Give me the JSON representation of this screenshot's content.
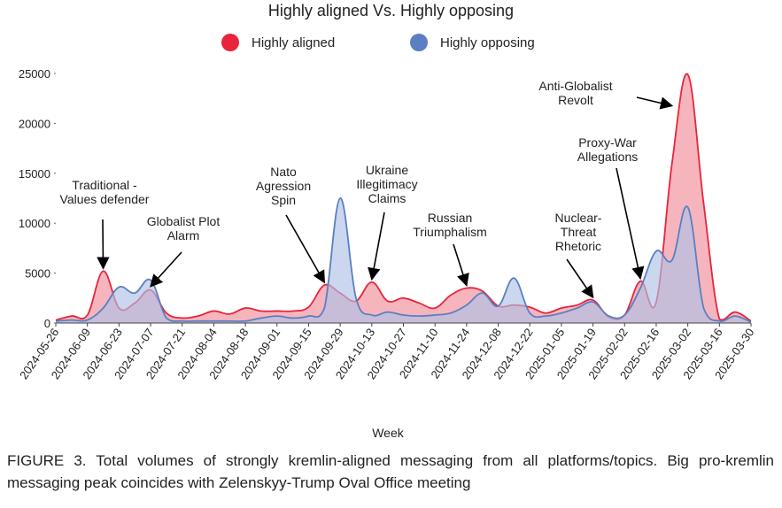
{
  "chart_data": {
    "type": "area",
    "title": "Highly aligned Vs. Highly opposing",
    "xlabel": "Week",
    "ylabel": "",
    "ylim": [
      0,
      25000
    ],
    "yticks": [
      0,
      5000,
      10000,
      15000,
      20000,
      25000
    ],
    "legend_position": "top-center",
    "grid": false,
    "x_tick_labels": [
      "2024-05-26",
      "2024-06-09",
      "2024-06-23",
      "2024-07-07",
      "2024-07-21",
      "2024-08-04",
      "2024-08-18",
      "2024-09-01",
      "2024-09-15",
      "2024-09-29",
      "2024-10-13",
      "2024-10-27",
      "2024-11-10",
      "2024-11-24",
      "2024-12-08",
      "2024-12-22",
      "2025-01-05",
      "2025-01-19",
      "2025-02-02",
      "2025-02-16",
      "2025-03-02",
      "2025-03-16",
      "2025-03-30"
    ],
    "x": [
      "2024-05-26",
      "2024-06-02",
      "2024-06-09",
      "2024-06-16",
      "2024-06-23",
      "2024-06-30",
      "2024-07-07",
      "2024-07-14",
      "2024-07-21",
      "2024-07-28",
      "2024-08-04",
      "2024-08-11",
      "2024-08-18",
      "2024-08-25",
      "2024-09-01",
      "2024-09-08",
      "2024-09-15",
      "2024-09-22",
      "2024-09-29",
      "2024-10-06",
      "2024-10-13",
      "2024-10-20",
      "2024-10-27",
      "2024-11-03",
      "2024-11-10",
      "2024-11-17",
      "2024-11-24",
      "2024-12-01",
      "2024-12-08",
      "2024-12-15",
      "2024-12-22",
      "2024-12-29",
      "2025-01-05",
      "2025-01-12",
      "2025-01-19",
      "2025-01-26",
      "2025-02-02",
      "2025-02-09",
      "2025-02-16",
      "2025-02-23",
      "2025-03-02",
      "2025-03-09",
      "2025-03-16",
      "2025-03-23",
      "2025-03-30"
    ],
    "series": [
      {
        "name": "Highly aligned",
        "color": "#e8243c",
        "fill": "#f4a3ad",
        "values": [
          300,
          700,
          800,
          5200,
          1500,
          2000,
          3300,
          1000,
          500,
          700,
          1200,
          900,
          1500,
          1200,
          1200,
          1200,
          1600,
          3800,
          3000,
          2200,
          4100,
          2200,
          2500,
          2000,
          1500,
          2800,
          3500,
          3200,
          1700,
          1800,
          1600,
          1000,
          1500,
          1800,
          2300,
          600,
          800,
          4200,
          2100,
          16000,
          24900,
          12000,
          400,
          1100,
          200
        ]
      },
      {
        "name": "Highly opposing",
        "color": "#5a7fc2",
        "fill": "#aec2e6",
        "values": [
          200,
          300,
          300,
          1500,
          3600,
          3000,
          4300,
          500,
          200,
          200,
          200,
          200,
          200,
          500,
          700,
          500,
          700,
          1500,
          12500,
          2500,
          800,
          1100,
          800,
          700,
          800,
          1000,
          1800,
          3000,
          1700,
          4500,
          1000,
          700,
          1000,
          1500,
          2100,
          700,
          800,
          3500,
          7200,
          6300,
          11600,
          1500,
          200,
          700,
          100
        ]
      }
    ],
    "annotations": [
      {
        "lines": [
          "Traditional -",
          "Values defender"
        ],
        "date": "2024-06-16",
        "value": 5200
      },
      {
        "lines": [
          "Globalist Plot",
          "Alarm"
        ],
        "date": "2024-07-07",
        "value": 3400
      },
      {
        "lines": [
          "Nato",
          "Agression",
          "Spin"
        ],
        "date": "2024-09-22",
        "value": 3800
      },
      {
        "lines": [
          "Ukraine",
          "Illegitimacy",
          "Claims"
        ],
        "date": "2024-10-13",
        "value": 4100
      },
      {
        "lines": [
          "Russian",
          "Triumphalism"
        ],
        "date": "2024-11-24",
        "value": 3500
      },
      {
        "lines": [
          "Nuclear-",
          "Threat",
          "Rhetoric"
        ],
        "date": "2025-01-19",
        "value": 2300
      },
      {
        "lines": [
          "Proxy-War",
          "Allegations"
        ],
        "date": "2025-02-09",
        "value": 4200
      },
      {
        "lines": [
          "Anti-Globalist",
          "Revolt"
        ],
        "date": "2025-02-23",
        "value": 21500
      }
    ]
  },
  "caption": "FIGURE 3. Total volumes of strongly kremlin-aligned messaging from all platforms/topics. Big pro-kremlin messaging peak coincides with Zelenskyy-Trump Oval Office meeting"
}
